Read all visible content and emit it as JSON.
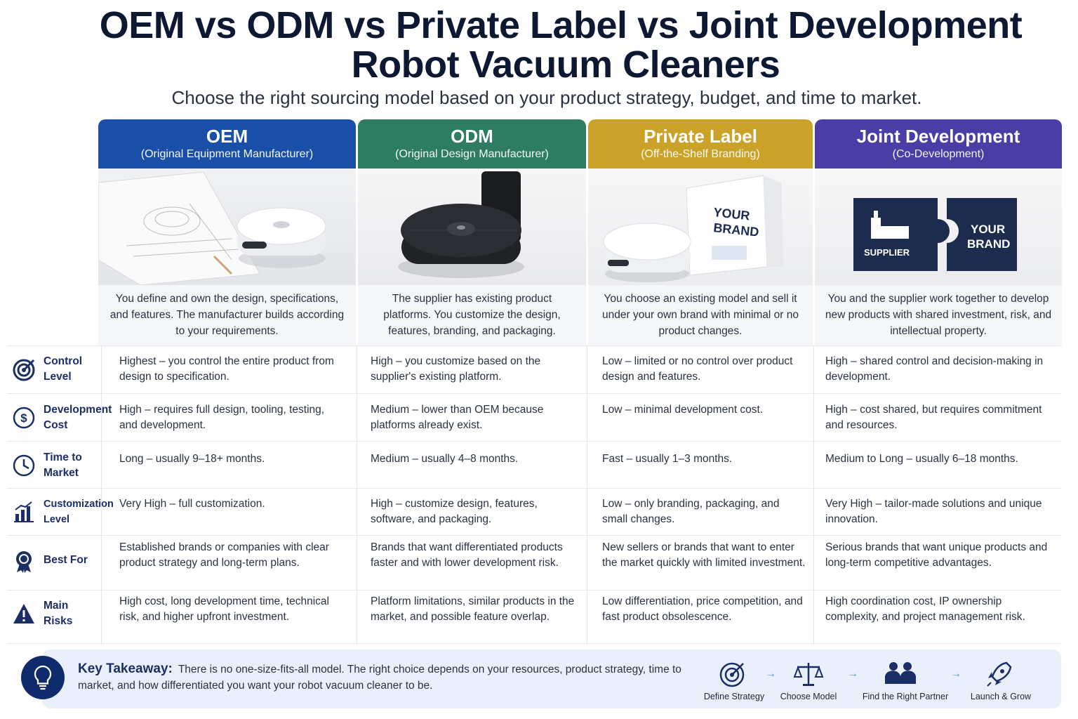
{
  "title": {
    "line1": "OEM vs ODM vs Private Label vs Joint Development",
    "line2": "Robot Vacuum Cleaners"
  },
  "subtitle": "Choose the right sourcing model based on your product strategy, budget, and time to market.",
  "columns": [
    {
      "name": "OEM",
      "sub": "(Original Equipment Manufacturer)",
      "color": "#1a4fa8",
      "description": "You define and own the design, specifications, and features. The manufacturer builds according to your requirements."
    },
    {
      "name": "ODM",
      "sub": "(Original Design Manufacturer)",
      "color": "#2e7d62",
      "description": "The supplier has existing product platforms. You customize the design, features, branding, and packaging."
    },
    {
      "name": "Private Label",
      "sub": "(Off-the-Shelf Branding)",
      "color": "#c9a227",
      "description": "You choose an existing model and sell it under your own brand with minimal or no product changes.",
      "box_text": "YOUR BRAND"
    },
    {
      "name": "Joint Development",
      "sub": "(Co-Development)",
      "color": "#4b3da6",
      "description": "You and the supplier work together to develop new products with shared investment, risk, and intellectual property.",
      "puzzle_left": "SUPPLIER",
      "puzzle_right": "YOUR BRAND"
    }
  ],
  "rows": [
    {
      "label": "Control Level",
      "icon": "target-icon",
      "cells": [
        "Highest – you control the entire product from design to specification.",
        "High – you customize based on the supplier's existing platform.",
        "Low – limited or no control over product design and features.",
        "High – shared control and decision-making in development."
      ]
    },
    {
      "label": "Development Cost",
      "icon": "dollar-icon",
      "cells": [
        "High – requires full design, tooling, testing, and development.",
        "Medium – lower than OEM because platforms already exist.",
        "Low – minimal development cost.",
        "High – cost shared, but requires commitment and resources."
      ]
    },
    {
      "label": "Time to Market",
      "icon": "clock-icon",
      "cells": [
        "Long – usually 9–18+ months.",
        "Medium – usually 4–8 months.",
        "Fast – usually 1–3 months.",
        "Medium to Long – usually 6–18 months."
      ]
    },
    {
      "label": "Customization Level",
      "icon": "bar-chart-icon",
      "cells": [
        "Very High – full customization.",
        "High – customize design, features, software, and packaging.",
        "Low – only branding, packaging, and small changes.",
        "Very High – tailor-made solutions and unique innovation."
      ]
    },
    {
      "label": "Best For",
      "icon": "award-icon",
      "cells": [
        "Established brands or companies with clear product strategy and long-term plans.",
        "Brands that want differentiated products faster and with lower development risk.",
        "New sellers or brands that want to enter the market quickly with limited investment.",
        "Serious brands that want unique products and long-term competitive advantages."
      ]
    },
    {
      "label": "Main Risks",
      "icon": "warning-icon",
      "cells": [
        "High cost, long development time, technical risk, and higher upfront investment.",
        "Platform limitations, similar products in the market, and possible feature overlap.",
        "Low differentiation, price competition, and fast product obsolescence.",
        "High coordination cost, IP ownership complexity, and project management risk."
      ]
    }
  ],
  "takeaway": {
    "label": "Key Takeaway:",
    "text": "There is no one-size-fits-all model. The right choice depends on your resources, product strategy, time to market, and how differentiated you want your robot vacuum cleaner to be."
  },
  "steps": [
    {
      "label": "Define Strategy",
      "icon": "target-icon"
    },
    {
      "label": "Choose Model",
      "icon": "scales-icon"
    },
    {
      "label": "Find the Right Partner",
      "icon": "people-icon"
    },
    {
      "label": "Launch & Grow",
      "icon": "rocket-icon"
    }
  ]
}
